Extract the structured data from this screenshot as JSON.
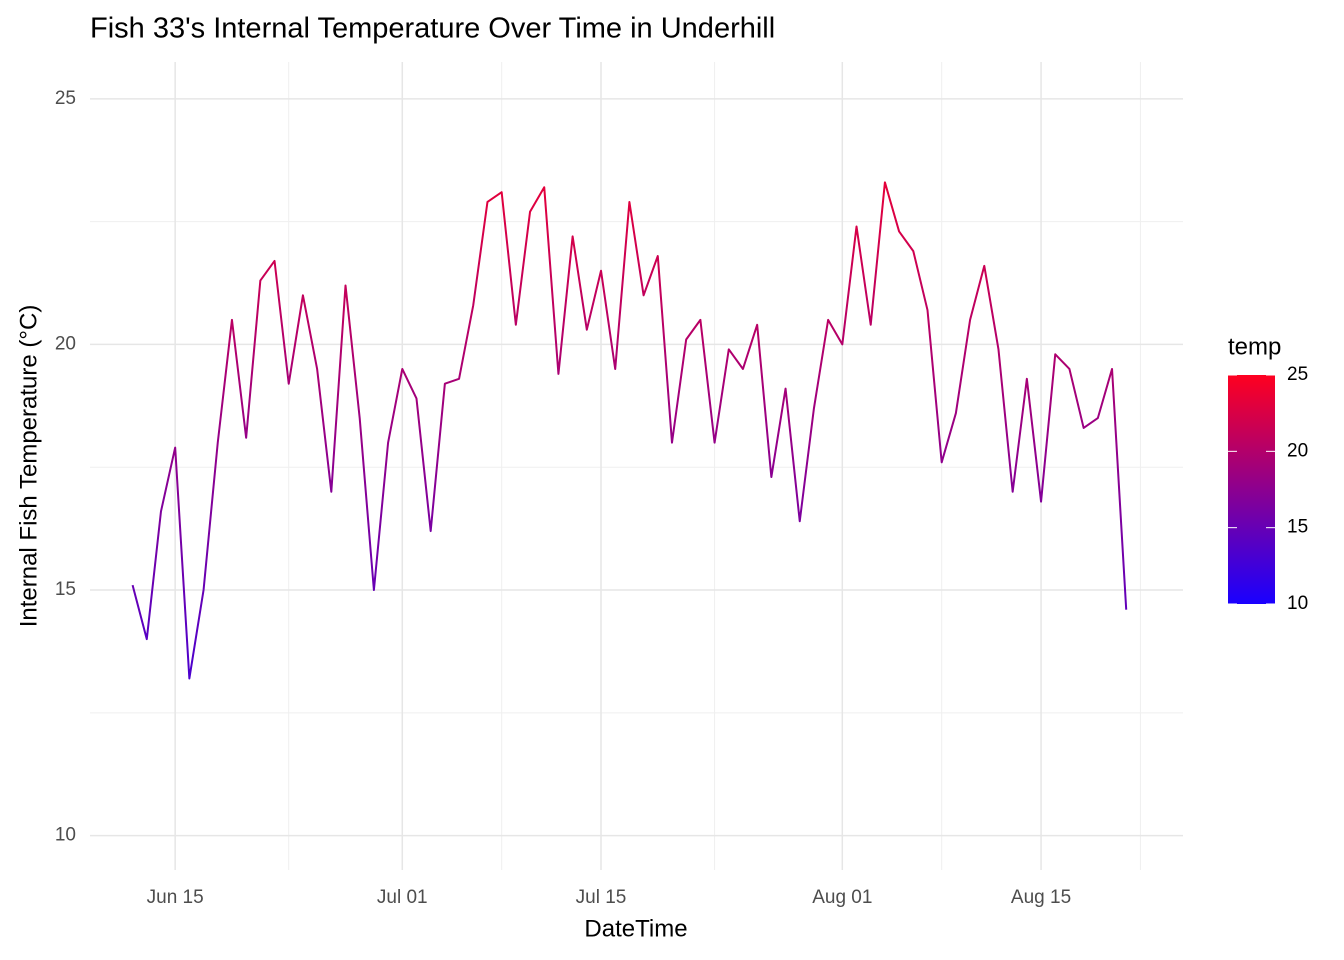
{
  "chart_data": {
    "type": "line",
    "title": "Fish 33's Internal Temperature Over Time in Underhill",
    "x_label": "DateTime",
    "y_label": "Internal Fish Temperature (°C)",
    "x": [
      "Jun 12",
      "Jun 13",
      "Jun 14",
      "Jun 15",
      "Jun 16",
      "Jun 17",
      "Jun 18",
      "Jun 19",
      "Jun 20",
      "Jun 21",
      "Jun 22",
      "Jun 23",
      "Jun 24",
      "Jun 25",
      "Jun 26",
      "Jun 27",
      "Jun 28",
      "Jun 29",
      "Jun 30",
      "Jul 01",
      "Jul 02",
      "Jul 03",
      "Jul 04",
      "Jul 05",
      "Jul 06",
      "Jul 07",
      "Jul 08",
      "Jul 09",
      "Jul 10",
      "Jul 11",
      "Jul 12",
      "Jul 13",
      "Jul 14",
      "Jul 15",
      "Jul 16",
      "Jul 17",
      "Jul 18",
      "Jul 19",
      "Jul 20",
      "Jul 21",
      "Jul 22",
      "Jul 23",
      "Jul 24",
      "Jul 25",
      "Jul 26",
      "Jul 27",
      "Jul 28",
      "Jul 29",
      "Jul 30",
      "Jul 31",
      "Aug 01",
      "Aug 02",
      "Aug 03",
      "Aug 04",
      "Aug 05",
      "Aug 06",
      "Aug 07",
      "Aug 08",
      "Aug 09",
      "Aug 10",
      "Aug 11",
      "Aug 12",
      "Aug 13",
      "Aug 14",
      "Aug 15",
      "Aug 16",
      "Aug 17",
      "Aug 18",
      "Aug 19",
      "Aug 20",
      "Aug 21"
    ],
    "values": [
      15.1,
      14.0,
      16.6,
      17.9,
      13.2,
      15.0,
      18.0,
      20.5,
      18.1,
      21.3,
      21.7,
      19.2,
      21.0,
      19.5,
      17.0,
      21.2,
      18.5,
      15.0,
      18.0,
      19.5,
      18.9,
      16.2,
      19.2,
      19.3,
      20.8,
      22.9,
      23.1,
      20.4,
      22.7,
      23.2,
      19.4,
      22.2,
      20.3,
      21.5,
      19.5,
      22.9,
      21.0,
      21.8,
      18.0,
      20.1,
      20.5,
      18.0,
      19.9,
      19.5,
      20.4,
      17.3,
      19.1,
      16.4,
      18.7,
      20.5,
      20.0,
      22.4,
      20.4,
      23.3,
      22.3,
      21.9,
      20.7,
      17.6,
      18.6,
      20.5,
      21.6,
      19.9,
      17.0,
      19.3,
      16.8,
      19.8,
      19.5,
      18.3,
      18.5,
      19.5,
      14.6
    ],
    "xlim": [
      "Jun 09",
      "Aug 25"
    ],
    "xticks": [
      "Jun 15",
      "Jul 01",
      "Jul 15",
      "Aug 01",
      "Aug 15"
    ],
    "xticks_minor": [
      "Jun 23",
      "Jul 08",
      "Jul 23",
      "Aug 08",
      "Aug 22"
    ],
    "ylim": [
      9.3,
      25.75
    ],
    "yticks": [
      10,
      15,
      20,
      25
    ],
    "yticks_minor": [
      12.5,
      17.5,
      22.5
    ],
    "grid": true,
    "color_title": "temp",
    "color_low": "#1a00ff",
    "color_high": "#ff0020",
    "color_lim": [
      10,
      25
    ],
    "color_ticks": [
      10,
      15,
      20,
      25
    ]
  }
}
